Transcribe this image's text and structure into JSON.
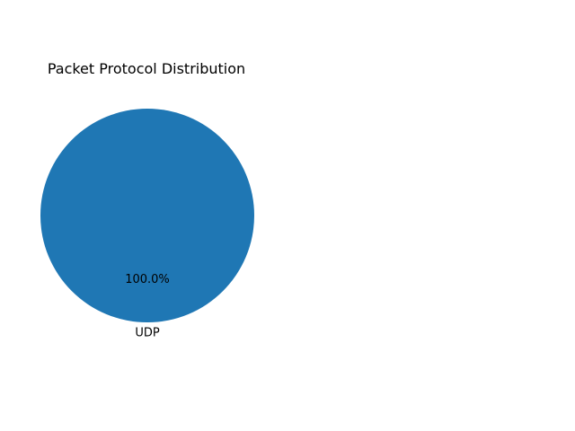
{
  "chart_data": {
    "type": "pie",
    "title": "Packet Protocol Distribution",
    "slices": [
      {
        "label": "UDP",
        "value": 100.0,
        "percent_label": "100.0%",
        "color": "#1f77b4"
      }
    ],
    "legend": "none"
  }
}
